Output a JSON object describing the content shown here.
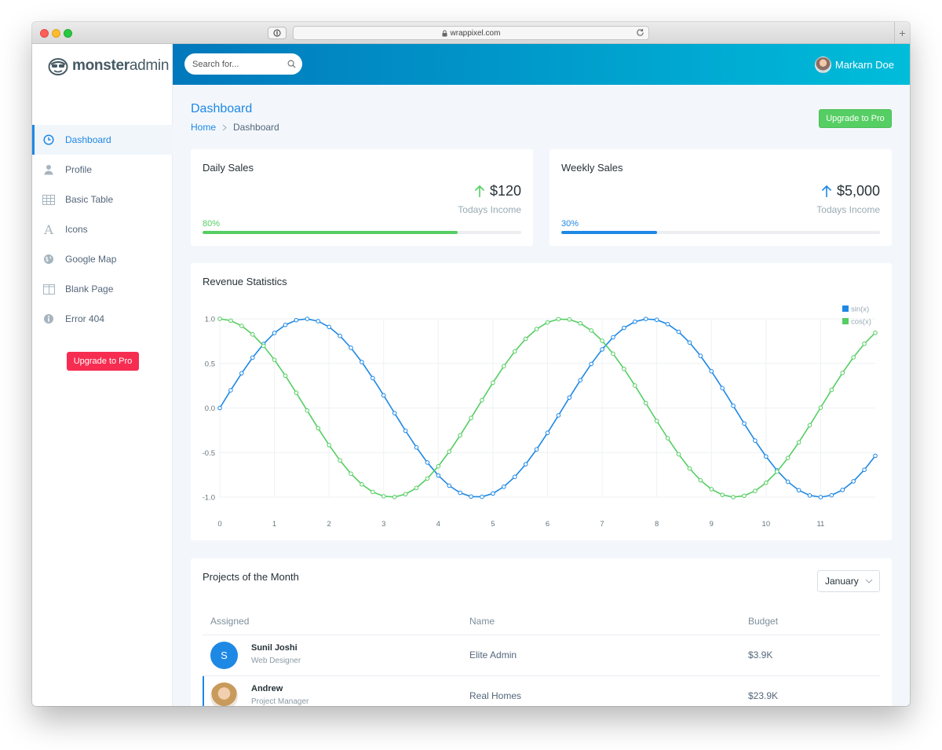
{
  "browser": {
    "url": "wrappixel.com",
    "new_tab": "+"
  },
  "brand": {
    "bold": "monster",
    "light": "admin"
  },
  "sidebar": {
    "items": [
      {
        "label": "Dashboard",
        "icon": "clock-icon"
      },
      {
        "label": "Profile",
        "icon": "user-icon"
      },
      {
        "label": "Basic Table",
        "icon": "table-icon"
      },
      {
        "label": "Icons",
        "icon": "font-icon"
      },
      {
        "label": "Google Map",
        "icon": "globe-icon"
      },
      {
        "label": "Blank Page",
        "icon": "columns-icon"
      },
      {
        "label": "Error 404",
        "icon": "info-icon"
      }
    ],
    "active_index": 0,
    "upgrade_label": "Upgrade to Pro"
  },
  "header": {
    "search_placeholder": "Search for...",
    "user_name": "Markarn Doe"
  },
  "page": {
    "title": "Dashboard",
    "breadcrumb": {
      "home": "Home",
      "current": "Dashboard"
    },
    "upgrade_label": "Upgrade to Pro"
  },
  "stats": [
    {
      "title": "Daily Sales",
      "amount": "$120",
      "sub": "Todays Income",
      "percent_label": "80%",
      "percent": 80,
      "color": "#55ce63"
    },
    {
      "title": "Weekly Sales",
      "amount": "$5,000",
      "sub": "Todays Income",
      "percent_label": "30%",
      "percent": 30,
      "color": "#1e88e5"
    }
  ],
  "revenue": {
    "title": "Revenue Statistics"
  },
  "chart_data": {
    "type": "line",
    "title": "Revenue Statistics",
    "xlabel": "",
    "ylabel": "",
    "xlim": [
      0,
      12
    ],
    "ylim": [
      -1.0,
      1.0
    ],
    "x_ticks": [
      0,
      1,
      2,
      3,
      4,
      5,
      6,
      7,
      8,
      9,
      10,
      11
    ],
    "y_ticks": [
      "1.0",
      "0.5",
      "0.0",
      "-0.5",
      "-1.0"
    ],
    "sample_step": 0.2,
    "grid": true,
    "legend_position": "top-right",
    "series": [
      {
        "name": "sin(x)",
        "function": "sin",
        "color": "#1e88e5"
      },
      {
        "name": "cos(x)",
        "function": "cos",
        "color": "#55ce63"
      }
    ]
  },
  "projects": {
    "title": "Projects of the Month",
    "month": "January",
    "columns": [
      "Assigned",
      "Name",
      "Budget"
    ],
    "rows": [
      {
        "initial": "S",
        "avatar_color": "#1e88e5",
        "person": "Sunil Joshi",
        "role": "Web Designer",
        "project": "Elite Admin",
        "budget": "$3.9K"
      },
      {
        "initial": "",
        "avatar_color": "#e8c7a4",
        "person": "Andrew",
        "role": "Project Manager",
        "project": "Real Homes",
        "budget": "$23.9K"
      }
    ]
  }
}
